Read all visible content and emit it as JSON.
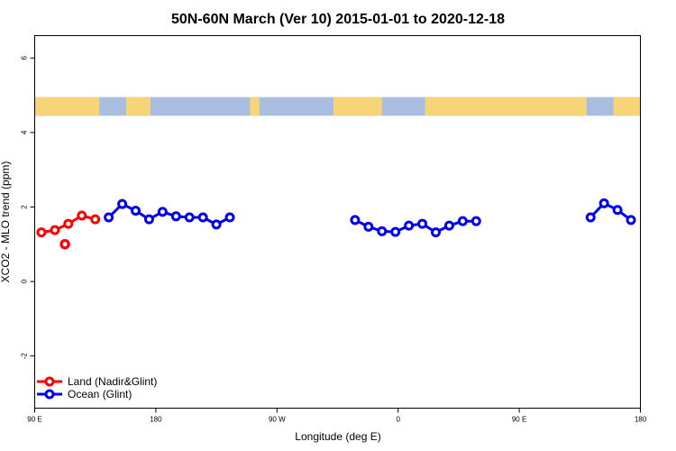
{
  "chart_data": {
    "type": "line",
    "title": "50N-60N March (Ver 10)   2015-01-01 to 2020-12-18",
    "xlabel": "Longitude (deg E)",
    "ylabel": "XCO2 - MLO trend (ppm)",
    "xlim": [
      90,
      540
    ],
    "ylim": [
      -3.4,
      6.6
    ],
    "x_ticks": [
      {
        "value": 90,
        "label": "90 E"
      },
      {
        "value": 180,
        "label": "180"
      },
      {
        "value": 270,
        "label": "90 W"
      },
      {
        "value": 360,
        "label": "0"
      },
      {
        "value": 450,
        "label": "90 E"
      },
      {
        "value": 540,
        "label": "180"
      }
    ],
    "y_ticks": [
      {
        "value": -2,
        "label": "-2"
      },
      {
        "value": 0,
        "label": "0"
      },
      {
        "value": 2,
        "label": "2"
      },
      {
        "value": 4,
        "label": "4"
      },
      {
        "value": 6,
        "label": "6"
      }
    ],
    "legend_position": "bottom-left",
    "map_band": {
      "y_range": [
        4.45,
        4.95
      ],
      "ocean_color": "#a9bde0",
      "land_color": "#f8d479"
    },
    "series": [
      {
        "name": "Land (Nadir&Glint)",
        "color": "#ff0000",
        "segments": [
          {
            "x": [
              95,
              105,
              115,
              125,
              135
            ],
            "y": [
              1.32,
              1.38,
              1.55,
              1.77,
              1.67
            ]
          },
          {
            "x": [
              112.5,
              112.5
            ],
            "y": [
              1.0,
              1.0
            ]
          },
          {
            "x": [
              112.5,
              112.5
            ],
            "y": [
              1.0,
              1.0
            ]
          },
          {
            "x": [
              112.5,
              112.5
            ],
            "y": [
              1.0,
              1.0
            ]
          },
          {
            "x": [
              112.5,
              112.5
            ],
            "y": [
              1.0,
              1.0
            ]
          },
          {
            "x": [
              112.5,
              112.5
            ],
            "y": [
              1.0,
              1.0
            ]
          },
          {
            "x": [
              112.5,
              112.5
            ],
            "y": [
              1.0,
              1.0
            ]
          },
          {
            "x": [
              112.5,
              112.5
            ],
            "y": [
              1.0,
              1.0
            ]
          },
          {
            "x": [
              112.5,
              112.5
            ],
            "y": [
              1.0,
              1.0
            ]
          },
          {
            "x": [
              112.5,
              112.5
            ],
            "y": [
              1.0,
              1.0
            ]
          },
          {
            "x": [
              112.5,
              112.5
            ],
            "y": [
              1.0,
              1.0
            ]
          },
          {
            "x": [
              112.5,
              112.5
            ],
            "y": [
              1.0,
              1.0
            ]
          },
          {
            "x": [
              112.5,
              112.5
            ],
            "y": [
              1.0,
              1.0
            ]
          }
        ]
      },
      {
        "name": "Ocean (Glint)",
        "color": "#0000ee",
        "segments": [
          {
            "x": [
              145,
              155,
              165,
              175,
              185,
              195,
              205,
              215,
              225,
              235
            ],
            "y": [
              1.72,
              2.08,
              1.9,
              1.67,
              1.87,
              1.75,
              1.72,
              1.72,
              1.53,
              1.72
            ]
          },
          {
            "x": [
              328,
              338,
              348,
              358,
              368,
              378,
              388,
              398,
              408,
              418
            ],
            "y": [
              1.65,
              1.47,
              1.35,
              1.33,
              1.5,
              1.55,
              1.32,
              1.5,
              1.62,
              1.62
            ]
          },
          {
            "x": [
              503,
              513,
              523,
              533
            ],
            "y": [
              1.72,
              2.1,
              1.92,
              1.65
            ]
          }
        ]
      }
    ]
  }
}
